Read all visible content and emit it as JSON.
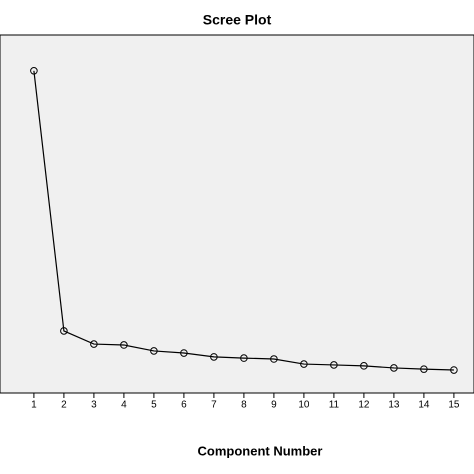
{
  "chart_data": {
    "type": "line",
    "title": "Scree Plot",
    "x_label": "Component Number",
    "x": [
      1,
      2,
      3,
      4,
      5,
      6,
      7,
      8,
      9,
      10,
      11,
      12,
      13,
      14,
      15
    ],
    "values": [
      10.8,
      2.08,
      1.64,
      1.61,
      1.41,
      1.34,
      1.21,
      1.17,
      1.14,
      0.97,
      0.94,
      0.91,
      0.84,
      0.8,
      0.77
    ],
    "color": "#000000",
    "xlim": [
      -0.13,
      15.67
    ],
    "xticks": [
      1,
      2,
      3,
      4,
      5,
      6,
      7,
      8,
      9,
      10,
      11,
      12,
      13,
      14,
      15
    ],
    "ylim": [
      0,
      12
    ]
  }
}
